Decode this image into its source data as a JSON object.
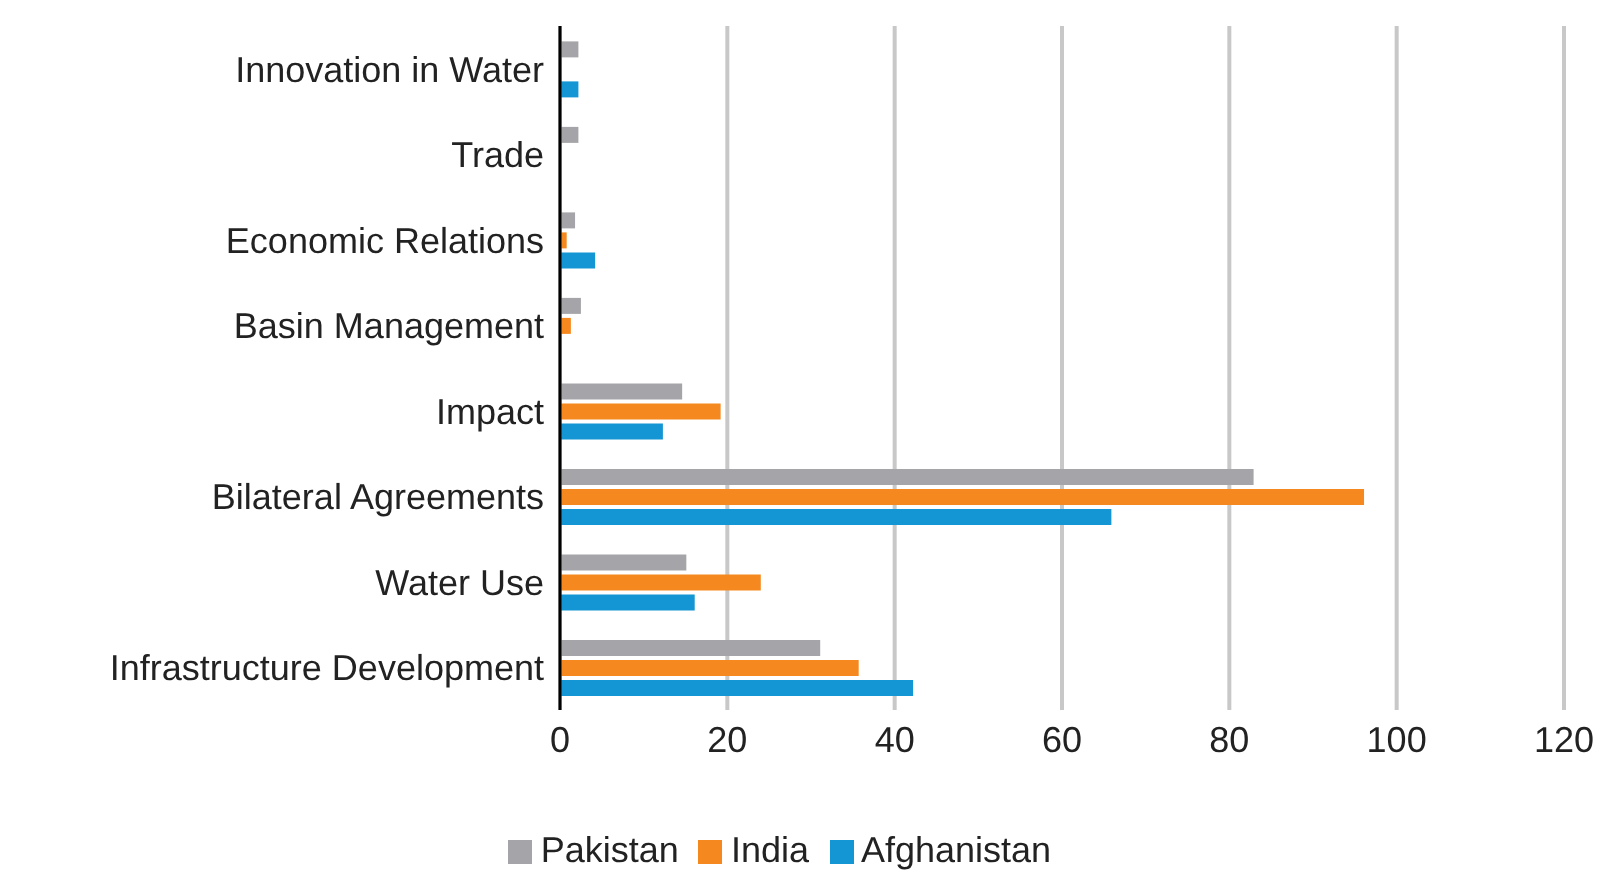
{
  "chart_data": {
    "type": "bar",
    "orientation": "horizontal",
    "categories": [
      "Innovation in Water",
      "Trade",
      "Economic Relations",
      "Basin Management",
      "Impact",
      "Bilateral Agreements",
      "Water Use",
      "Infrastructure Development"
    ],
    "series": [
      {
        "name": "Pakistan",
        "color": "#a5a5a9",
        "values": [
          2.2,
          2.2,
          1.8,
          2.5,
          14.6,
          82.9,
          15.1,
          31.1
        ]
      },
      {
        "name": "India",
        "color": "#f5891f",
        "values": [
          0,
          0,
          0.8,
          1.3,
          19.2,
          96.1,
          24.0,
          35.7
        ]
      },
      {
        "name": "Afghanistan",
        "color": "#1496d4",
        "values": [
          2.2,
          0,
          4.2,
          0,
          12.3,
          65.9,
          16.1,
          42.2
        ]
      }
    ],
    "xlim": [
      0,
      120
    ],
    "xticks": [
      0,
      20,
      40,
      60,
      80,
      100,
      120
    ],
    "grid": "x",
    "legend": "bottom"
  }
}
